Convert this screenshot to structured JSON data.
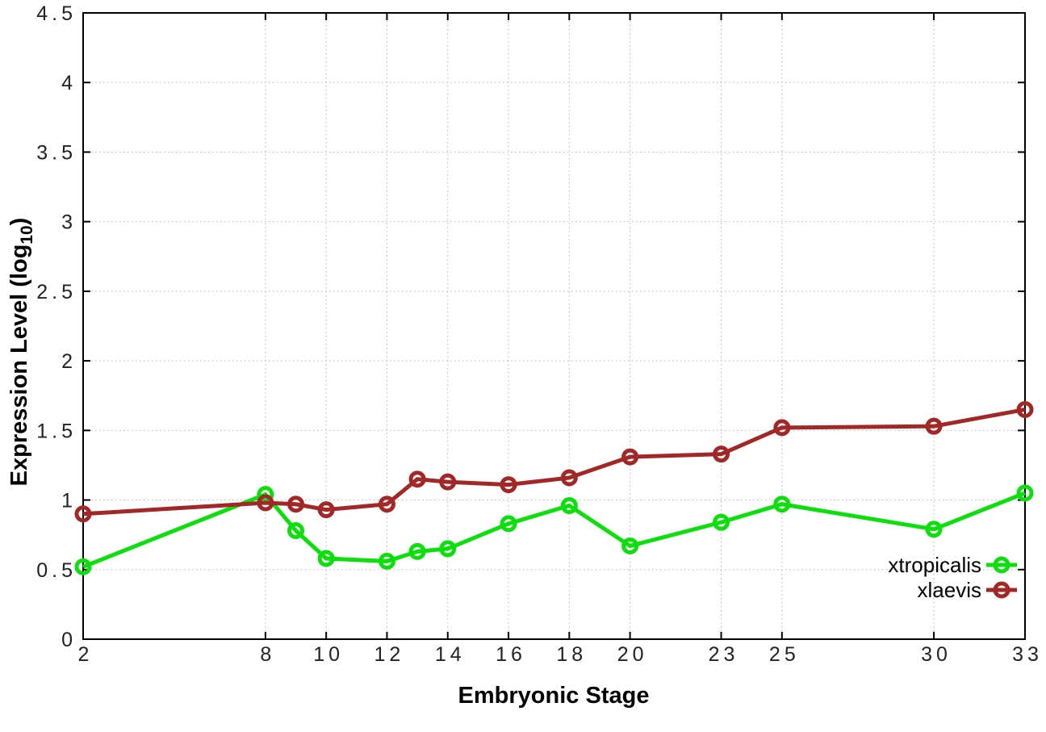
{
  "chart_data": {
    "type": "line",
    "title": "",
    "xlabel": "Embryonic Stage",
    "ylabel": "Expression Level (log10)",
    "ylabel_parts": {
      "pre": "Expression Level (log",
      "sub": "10",
      "post": ")"
    },
    "xlim": [
      2,
      33
    ],
    "ylim": [
      0,
      4.5
    ],
    "x_ticks": [
      2,
      8,
      10,
      12,
      14,
      16,
      18,
      20,
      23,
      25,
      30,
      33
    ],
    "y_ticks": [
      0,
      0.5,
      1,
      1.5,
      2,
      2.5,
      3,
      3.5,
      4,
      4.5
    ],
    "grid": true,
    "legend_position": "inside-bottom-right",
    "marker": "open-circle",
    "x": [
      2,
      8,
      9,
      10,
      12,
      13,
      14,
      16,
      18,
      20,
      23,
      25,
      30,
      33
    ],
    "series": [
      {
        "name": "xtropicalis",
        "color": "#0cdf0c",
        "values": [
          0.52,
          1.04,
          0.78,
          0.58,
          0.56,
          0.63,
          0.65,
          0.83,
          0.96,
          0.67,
          0.84,
          0.97,
          0.79,
          1.05
        ]
      },
      {
        "name": "xlaevis",
        "color": "#a22727",
        "values": [
          0.9,
          0.98,
          0.97,
          0.93,
          0.97,
          1.15,
          1.13,
          1.11,
          1.16,
          1.31,
          1.33,
          1.52,
          1.53,
          1.65
        ]
      }
    ]
  },
  "colors": {
    "background": "#ffffff",
    "plot_border": "#000000",
    "grid": "#b4b4b4",
    "tick_text": "#222222",
    "legend_text": "#000000"
  }
}
